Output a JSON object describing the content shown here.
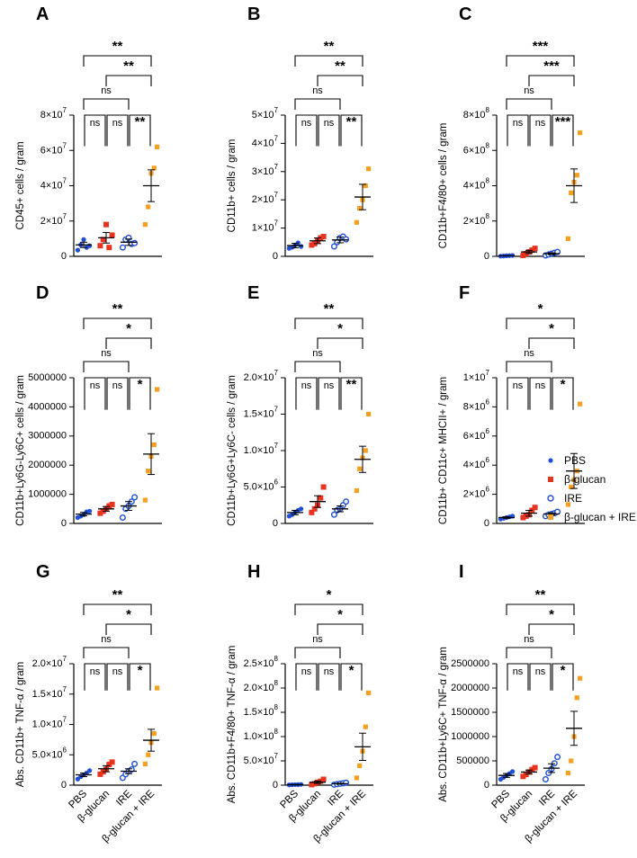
{
  "figure_title": "",
  "legend": {
    "items": [
      {
        "label": "PBS",
        "color": "#1f4fd6",
        "marker": "dot"
      },
      {
        "label": "β-glucan",
        "color": "#e8331e",
        "marker": "square"
      },
      {
        "label": "IRE",
        "color": "#1f4fd6",
        "marker": "open-circle"
      },
      {
        "label": "β-glucan + IRE",
        "color": "#f5a020",
        "marker": "square"
      }
    ]
  },
  "group_labels": [
    "PBS",
    "β-glucan",
    "IRE",
    "β-glucan + IRE"
  ],
  "colors": {
    "pbs": "#1f4fd6",
    "bglucan": "#e8331e",
    "ire": "#1f4fd6",
    "combo": "#f5a020"
  },
  "chart_data": [
    {
      "panel": "A",
      "type": "scatter",
      "ylabel": "CD45+ cells / gram",
      "ylim": [
        0,
        80000000
      ],
      "ticks": [
        0,
        20000000,
        40000000,
        60000000,
        80000000
      ],
      "tick_labels": [
        "0",
        "2×10^7",
        "4×10^7",
        "6×10^7",
        "8×10^7"
      ],
      "means": [
        6500000,
        10500000,
        8000000,
        40000000
      ],
      "sems": [
        1500000,
        3000000,
        1800000,
        9000000
      ],
      "points": [
        [
          3500000,
          6500000,
          9500000,
          5000000,
          6000000
        ],
        [
          6000000,
          9500000,
          18000000,
          5000000,
          12000000
        ],
        [
          5000000,
          9500000,
          10500000,
          7000000,
          7500000
        ],
        [
          18000000,
          28000000,
          47000000,
          50000000,
          62000000
        ]
      ],
      "comparisons": [
        {
          "from": 0,
          "to": 3,
          "label": "**"
        },
        {
          "from": 1,
          "to": 3,
          "label": "**"
        },
        {
          "from": 2,
          "to": 3,
          "label": "**"
        },
        {
          "from": 0,
          "to": 2,
          "label": "ns"
        },
        {
          "from": 0,
          "to": 1,
          "label": "ns"
        },
        {
          "from": 1,
          "to": 2,
          "label": "ns"
        }
      ]
    },
    {
      "panel": "B",
      "type": "scatter",
      "ylabel": "CD11b+ cells / gram",
      "ylim": [
        0,
        50000000
      ],
      "ticks": [
        0,
        10000000,
        20000000,
        30000000,
        40000000,
        50000000
      ],
      "tick_labels": [
        "0",
        "1×10^7",
        "2×10^7",
        "3×10^7",
        "4×10^7",
        "5×10^7"
      ],
      "means": [
        3800000,
        5500000,
        5800000,
        21000000
      ],
      "sems": [
        800000,
        1000000,
        1000000,
        4500000
      ],
      "points": [
        [
          2800000,
          3200000,
          4000000,
          4800000,
          3500000
        ],
        [
          4000000,
          4500000,
          5500000,
          6500000,
          7000000
        ],
        [
          3500000,
          5000000,
          6500000,
          7000000,
          6000000
        ],
        [
          12000000,
          17000000,
          20000000,
          25000000,
          31000000
        ]
      ],
      "comparisons": [
        {
          "from": 0,
          "to": 3,
          "label": "**"
        },
        {
          "from": 1,
          "to": 3,
          "label": "**"
        },
        {
          "from": 2,
          "to": 3,
          "label": "**"
        },
        {
          "from": 0,
          "to": 2,
          "label": "ns"
        },
        {
          "from": 0,
          "to": 1,
          "label": "ns"
        },
        {
          "from": 1,
          "to": 2,
          "label": "ns"
        }
      ]
    },
    {
      "panel": "C",
      "type": "scatter",
      "ylabel": "CD11b+F4/80+ cells / gram",
      "ylim": [
        0,
        800000000
      ],
      "ticks": [
        0,
        200000000,
        400000000,
        600000000,
        800000000
      ],
      "tick_labels": [
        "0",
        "2×10^8",
        "4×10^8",
        "6×10^8",
        "8×10^8"
      ],
      "means": [
        3000000,
        25000000,
        15000000,
        400000000
      ],
      "sems": [
        1000000,
        9000000,
        5000000,
        95000000
      ],
      "points": [
        [
          1000000,
          2000000,
          3000000,
          4000000,
          5000000
        ],
        [
          5000000,
          15000000,
          25000000,
          35000000,
          45000000
        ],
        [
          5000000,
          10000000,
          15000000,
          20000000,
          25000000
        ],
        [
          100000000,
          360000000,
          420000000,
          460000000,
          700000000
        ]
      ],
      "comparisons": [
        {
          "from": 0,
          "to": 3,
          "label": "***"
        },
        {
          "from": 1,
          "to": 3,
          "label": "***"
        },
        {
          "from": 2,
          "to": 3,
          "label": "***"
        },
        {
          "from": 0,
          "to": 2,
          "label": "ns"
        },
        {
          "from": 0,
          "to": 1,
          "label": "ns"
        },
        {
          "from": 1,
          "to": 2,
          "label": "ns"
        }
      ]
    },
    {
      "panel": "D",
      "type": "scatter",
      "ylabel": "CD11b+Ly6G-Ly6C+ cells / gram",
      "ylim": [
        0,
        5000000
      ],
      "ticks": [
        0,
        1000000,
        2000000,
        3000000,
        4000000,
        5000000
      ],
      "tick_labels": [
        "0",
        "1000000",
        "2000000",
        "3000000",
        "4000000",
        "5000000"
      ],
      "means": [
        320000,
        500000,
        600000,
        2380000
      ],
      "sems": [
        60000,
        80000,
        150000,
        700000
      ],
      "points": [
        [
          200000,
          250000,
          300000,
          400000,
          420000
        ],
        [
          350000,
          420000,
          500000,
          600000,
          650000
        ],
        [
          200000,
          500000,
          600000,
          750000,
          900000
        ],
        [
          800000,
          1800000,
          2300000,
          2700000,
          4600000
        ]
      ],
      "comparisons": [
        {
          "from": 0,
          "to": 3,
          "label": "**"
        },
        {
          "from": 1,
          "to": 3,
          "label": "*"
        },
        {
          "from": 2,
          "to": 3,
          "label": "*"
        },
        {
          "from": 0,
          "to": 2,
          "label": "ns"
        },
        {
          "from": 0,
          "to": 1,
          "label": "ns"
        },
        {
          "from": 1,
          "to": 2,
          "label": "ns"
        }
      ]
    },
    {
      "panel": "E",
      "type": "scatter",
      "ylabel": "CD11b+Ly6G+Ly6C- cells / gram",
      "ylim": [
        0,
        20000000
      ],
      "ticks": [
        0,
        5000000,
        10000000,
        15000000,
        20000000
      ],
      "tick_labels": [
        "0",
        "5.0×10^6",
        "1.0×10^7",
        "1.5×10^7",
        "2.0×10^7"
      ],
      "means": [
        1500000,
        3000000,
        2000000,
        8800000
      ],
      "sems": [
        300000,
        800000,
        400000,
        1800000
      ],
      "points": [
        [
          1000000,
          1200000,
          1500000,
          1800000,
          2000000
        ],
        [
          1500000,
          2000000,
          2500000,
          3500000,
          5000000
        ],
        [
          1200000,
          1800000,
          2000000,
          2500000,
          3000000
        ],
        [
          4500000,
          7500000,
          9000000,
          10000000,
          15000000
        ]
      ],
      "comparisons": [
        {
          "from": 0,
          "to": 3,
          "label": "**"
        },
        {
          "from": 1,
          "to": 3,
          "label": "*"
        },
        {
          "from": 2,
          "to": 3,
          "label": "**"
        },
        {
          "from": 0,
          "to": 2,
          "label": "ns"
        },
        {
          "from": 0,
          "to": 1,
          "label": "ns"
        },
        {
          "from": 1,
          "to": 2,
          "label": "ns"
        }
      ]
    },
    {
      "panel": "F",
      "type": "scatter",
      "ylabel": "CD11b+ CD11c+ MHCII+ / gram",
      "ylim": [
        0,
        10000000
      ],
      "ticks": [
        0,
        2000000,
        4000000,
        6000000,
        8000000,
        10000000
      ],
      "tick_labels": [
        "0",
        "2×10^6",
        "4×10^6",
        "6×10^6",
        "8×10^6",
        "1×10^7"
      ],
      "means": [
        400000,
        700000,
        650000,
        3600000
      ],
      "sems": [
        50000,
        200000,
        80000,
        1200000
      ],
      "points": [
        [
          300000,
          350000,
          400000,
          450000,
          500000
        ],
        [
          400000,
          500000,
          600000,
          900000,
          1100000
        ],
        [
          500000,
          600000,
          650000,
          700000,
          800000
        ],
        [
          1300000,
          2500000,
          3000000,
          3600000,
          8200000
        ]
      ],
      "comparisons": [
        {
          "from": 0,
          "to": 3,
          "label": "*"
        },
        {
          "from": 1,
          "to": 3,
          "label": "*"
        },
        {
          "from": 2,
          "to": 3,
          "label": "*"
        },
        {
          "from": 0,
          "to": 2,
          "label": "ns"
        },
        {
          "from": 0,
          "to": 1,
          "label": "ns"
        },
        {
          "from": 1,
          "to": 2,
          "label": "ns"
        }
      ]
    },
    {
      "panel": "G",
      "type": "scatter",
      "ylabel": "Abs. CD11b+ TNF-α / gram",
      "ylim": [
        0,
        20000000
      ],
      "ticks": [
        0,
        5000000,
        10000000,
        15000000,
        20000000
      ],
      "tick_labels": [
        "0",
        "5.0×10^6",
        "1.0×10^7",
        "1.5×10^7",
        "2.0×10^7"
      ],
      "means": [
        1700000,
        2700000,
        2300000,
        7400000
      ],
      "sems": [
        300000,
        500000,
        400000,
        1800000
      ],
      "points": [
        [
          1000000,
          1400000,
          1700000,
          2000000,
          2400000
        ],
        [
          1800000,
          2200000,
          2600000,
          3400000,
          3800000
        ],
        [
          1200000,
          1800000,
          2300000,
          2600000,
          3500000
        ],
        [
          3500000,
          5000000,
          7000000,
          8500000,
          16000000
        ]
      ],
      "comparisons": [
        {
          "from": 0,
          "to": 3,
          "label": "**"
        },
        {
          "from": 1,
          "to": 3,
          "label": "*"
        },
        {
          "from": 2,
          "to": 3,
          "label": "*"
        },
        {
          "from": 0,
          "to": 2,
          "label": "ns"
        },
        {
          "from": 0,
          "to": 1,
          "label": "ns"
        },
        {
          "from": 1,
          "to": 2,
          "label": "ns"
        }
      ]
    },
    {
      "panel": "H",
      "type": "scatter",
      "ylabel": "Abs. CD11b+F4/80+ TNF-α / gram",
      "ylim": [
        0,
        250000000
      ],
      "ticks": [
        0,
        50000000,
        100000000,
        150000000,
        200000000,
        250000000
      ],
      "tick_labels": [
        "0",
        "5.0×10^7",
        "1.0×10^8",
        "1.5×10^8",
        "2.0×10^8",
        "2.5×10^8"
      ],
      "means": [
        1000000,
        6000000,
        3000000,
        79000000
      ],
      "sems": [
        500000,
        2500000,
        1000000,
        28000000
      ],
      "points": [
        [
          500000,
          800000,
          1000000,
          1200000,
          1500000
        ],
        [
          1000000,
          3000000,
          6000000,
          8000000,
          12000000
        ],
        [
          1000000,
          2000000,
          3000000,
          4000000,
          5000000
        ],
        [
          15000000,
          40000000,
          70000000,
          120000000,
          190000000
        ]
      ],
      "comparisons": [
        {
          "from": 0,
          "to": 3,
          "label": "*"
        },
        {
          "from": 1,
          "to": 3,
          "label": "*"
        },
        {
          "from": 2,
          "to": 3,
          "label": "*"
        },
        {
          "from": 0,
          "to": 2,
          "label": "ns"
        },
        {
          "from": 0,
          "to": 1,
          "label": "ns"
        },
        {
          "from": 1,
          "to": 2,
          "label": "ns"
        }
      ]
    },
    {
      "panel": "I",
      "type": "scatter",
      "ylabel": "Abs. CD11b+Ly6C+ TNF-α / gram",
      "ylim": [
        0,
        2500000
      ],
      "ticks": [
        0,
        500000,
        1000000,
        1500000,
        2000000,
        2500000
      ],
      "tick_labels": [
        "0",
        "500000",
        "1000000",
        "1500000",
        "2000000",
        "2500000"
      ],
      "means": [
        200000,
        270000,
        350000,
        1170000
      ],
      "sems": [
        40000,
        40000,
        90000,
        350000
      ],
      "points": [
        [
          120000,
          160000,
          200000,
          240000,
          280000
        ],
        [
          180000,
          220000,
          270000,
          320000,
          360000
        ],
        [
          120000,
          250000,
          330000,
          450000,
          580000
        ],
        [
          250000,
          500000,
          1000000,
          1800000,
          2200000
        ]
      ],
      "comparisons": [
        {
          "from": 0,
          "to": 3,
          "label": "**"
        },
        {
          "from": 1,
          "to": 3,
          "label": "*"
        },
        {
          "from": 2,
          "to": 3,
          "label": "*"
        },
        {
          "from": 0,
          "to": 2,
          "label": "ns"
        },
        {
          "from": 0,
          "to": 1,
          "label": "ns"
        },
        {
          "from": 1,
          "to": 2,
          "label": "ns"
        }
      ]
    }
  ]
}
